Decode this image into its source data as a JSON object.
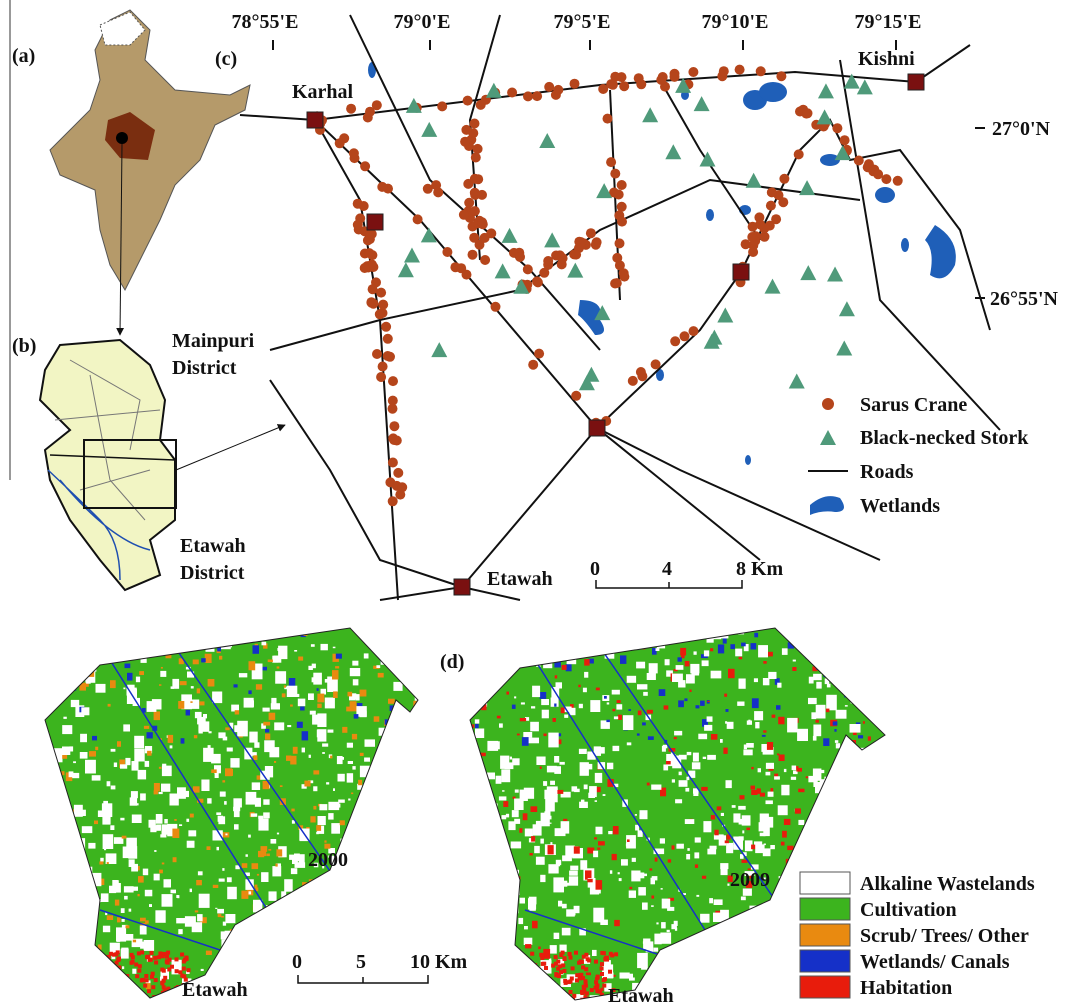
{
  "panels": {
    "a": "(a)",
    "b": "(b)",
    "c": "(c)",
    "d": "(d)"
  },
  "map_b": {
    "mainpuri": [
      "Mainpuri",
      "District"
    ],
    "etawah": [
      "Etawah",
      "District"
    ]
  },
  "map_c": {
    "longitudes": [
      "78°55'E",
      "79°0'E",
      "79°5'E",
      "79°10'E",
      "79°15'E"
    ],
    "latitudes": [
      "27°0'N",
      "26°55'N"
    ],
    "towns": {
      "karhal": "Karhal",
      "kishni": "Kishni",
      "etawah": "Etawah"
    },
    "legend": [
      "Sarus Crane",
      "Black-necked Stork",
      "Roads",
      "Wetlands"
    ],
    "scale": [
      "0",
      "4",
      "8 Km"
    ]
  },
  "map_d": {
    "years": [
      "2000",
      "2009"
    ],
    "towns": [
      "Etawah",
      "Etawah"
    ],
    "scale": [
      "0",
      "5",
      "10 Km"
    ],
    "legend": [
      "Alkaline Wastelands",
      "Cultivation",
      "Scrub/ Trees/ Other",
      "Wetlands/ Canals",
      "Habitation"
    ]
  }
}
